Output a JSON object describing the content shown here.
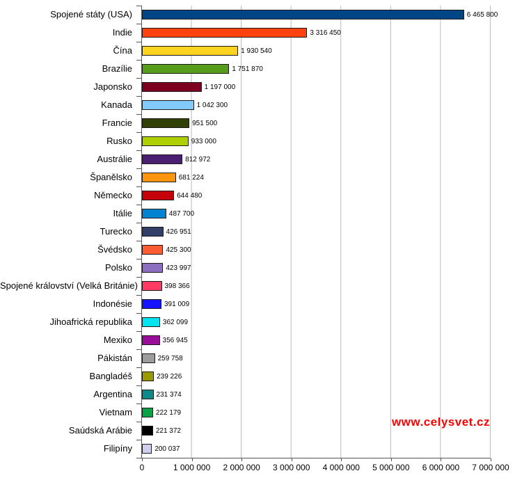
{
  "chart_data": {
    "type": "bar",
    "orientation": "horizontal",
    "title": "",
    "xlabel": "",
    "ylabel": "",
    "xlim": [
      0,
      7000000
    ],
    "grid": "vertical",
    "legend": "none",
    "categories": [
      "Spojené státy (USA)",
      "Indie",
      "Čína",
      "Brazílie",
      "Japonsko",
      "Kanada",
      "Francie",
      "Rusko",
      "Austrálie",
      "Španělsko",
      "Německo",
      "Itálie",
      "Turecko",
      "Švédsko",
      "Polsko",
      "Spojené království (Velká Británie)",
      "Indonésie",
      "Jihoafrická republika",
      "Mexiko",
      "Pákistán",
      "Bangladéš",
      "Argentina",
      "Vietnam",
      "Saúdská Arábie",
      "Filipíny"
    ],
    "values": [
      6465800,
      3316450,
      1930540,
      1751870,
      1197000,
      1042300,
      951500,
      933000,
      812972,
      681224,
      644480,
      487700,
      426951,
      425300,
      423997,
      398366,
      391009,
      362099,
      356945,
      259758,
      239226,
      231374,
      222179,
      221372,
      200037
    ],
    "value_labels": [
      "6 465 800",
      "3 316 450",
      "1 930 540",
      "1 751 870",
      "1 197 000",
      "1 042 300",
      "951 500",
      "933 000",
      "812 972",
      "681 224",
      "644 480",
      "487 700",
      "426 951",
      "425 300",
      "423 997",
      "398 366",
      "391 009",
      "362 099",
      "356 945",
      "259 758",
      "239 226",
      "231 374",
      "222 179",
      "221 372",
      "200 037"
    ],
    "colors": [
      "#004586",
      "#ff420e",
      "#ffd320",
      "#579d1c",
      "#7e0021",
      "#83caff",
      "#314004",
      "#aecf00",
      "#4b1f6f",
      "#ff950e",
      "#c5000b",
      "#0084d1",
      "#323f68",
      "#ff5b33",
      "#8d6fc0",
      "#ff3b63",
      "#1414ff",
      "#00e5f0",
      "#9a0d9a",
      "#9c9c9c",
      "#9a9a00",
      "#0d8a8a",
      "#0aa147",
      "#000000",
      "#cfcfef"
    ],
    "x_ticks": [
      "0",
      "1 000 000",
      "2 000 000",
      "3 000 000",
      "4 000 000",
      "5 000 000",
      "6 000 000",
      "7 000 000"
    ]
  },
  "watermark": {
    "text": "www.celysvet.cz",
    "color": "#ff0000"
  }
}
